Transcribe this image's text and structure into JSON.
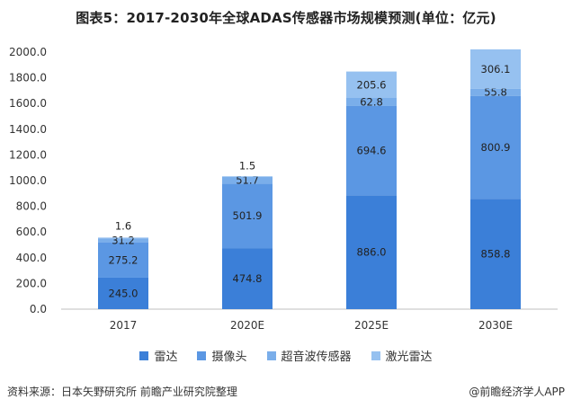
{
  "title": "图表5：2017-2030年全球ADAS传感器市场规模预测(单位：亿元)",
  "footer": {
    "source": "资料来源：日本矢野研究所 前瞻产业研究院整理",
    "brand": "@前瞻经济学人APP"
  },
  "colors": {
    "radar": "#3b7fd8",
    "camera": "#5b97e3",
    "ultrasonic": "#7aaeea",
    "lidar": "#96c1f0",
    "axis": "#bfbfbf"
  },
  "chart_data": {
    "type": "bar",
    "stacked": true,
    "title": "图表5：2017-2030年全球ADAS传感器市场规模预测(单位：亿元)",
    "categories": [
      "2017",
      "2020E",
      "2025E",
      "2030E"
    ],
    "ylim": [
      0,
      2000
    ],
    "yticks": [
      "0.0",
      "200.0",
      "400.0",
      "600.0",
      "800.0",
      "1000.0",
      "1200.0",
      "1400.0",
      "1600.0",
      "1800.0",
      "2000.0"
    ],
    "series": [
      {
        "name": "雷达",
        "key": "radar",
        "values": [
          245.0,
          474.8,
          886.0,
          858.8
        ],
        "labels": [
          "245.0",
          "474.8",
          "886.0",
          "858.8"
        ]
      },
      {
        "name": "摄像头",
        "key": "camera",
        "values": [
          275.2,
          501.9,
          694.6,
          800.9
        ],
        "labels": [
          "275.2",
          "501.9",
          "694.6",
          "800.9"
        ]
      },
      {
        "name": "超音波传感器",
        "key": "ultrasonic",
        "values": [
          31.2,
          51.7,
          62.8,
          55.8
        ],
        "labels": [
          "31.2",
          "51.7",
          "62.8",
          "55.8"
        ]
      },
      {
        "name": "激光雷达",
        "key": "lidar",
        "values": [
          1.6,
          1.5,
          205.6,
          306.1
        ],
        "labels": [
          "1.6",
          "1.5",
          "205.6",
          "306.1"
        ]
      }
    ],
    "legend_position": "bottom"
  }
}
